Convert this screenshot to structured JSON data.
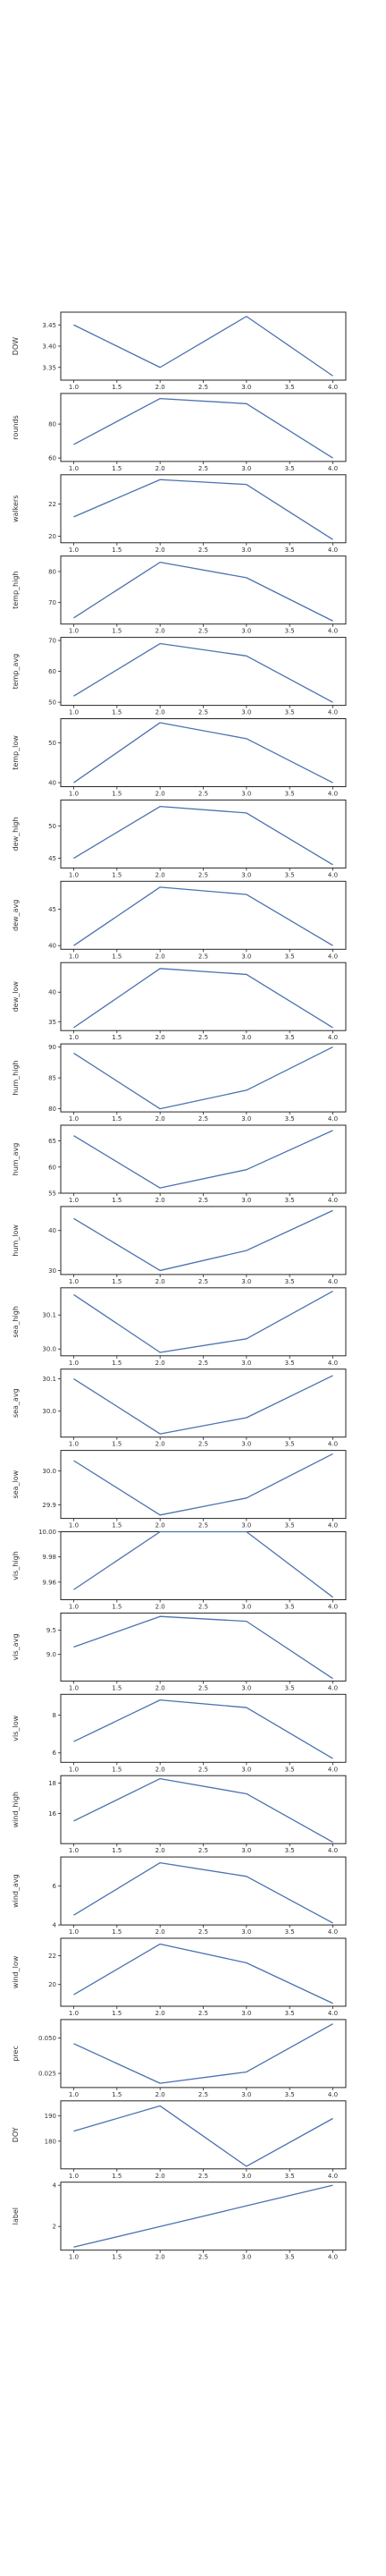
{
  "chart_data": [
    {
      "type": "line",
      "ylabel": "DOW",
      "x": [
        1,
        2,
        3,
        4
      ],
      "y": [
        3.45,
        3.35,
        3.47,
        3.33
      ],
      "ylim": [
        3.32,
        3.48
      ],
      "yticks": [
        "3.35",
        "3.40",
        "3.45"
      ]
    },
    {
      "type": "line",
      "ylabel": "rounds",
      "x": [
        1,
        2,
        3,
        4
      ],
      "y": [
        68,
        95,
        92,
        60
      ],
      "ylim": [
        58,
        98
      ],
      "yticks": [
        "60",
        "80"
      ]
    },
    {
      "type": "line",
      "ylabel": "walkers",
      "x": [
        1,
        2,
        3,
        4
      ],
      "y": [
        21.2,
        23.5,
        23.2,
        19.8
      ],
      "ylim": [
        19.6,
        23.8
      ],
      "yticks": [
        "20",
        "22"
      ]
    },
    {
      "type": "line",
      "ylabel": "temp_high",
      "x": [
        1,
        2,
        3,
        4
      ],
      "y": [
        65,
        83,
        78,
        64
      ],
      "ylim": [
        63,
        85
      ],
      "yticks": [
        "70",
        "80"
      ]
    },
    {
      "type": "line",
      "ylabel": "temp_avg",
      "x": [
        1,
        2,
        3,
        4
      ],
      "y": [
        52,
        69,
        65,
        50
      ],
      "ylim": [
        49,
        71
      ],
      "yticks": [
        "50",
        "60",
        "70"
      ]
    },
    {
      "type": "line",
      "ylabel": "temp_low",
      "x": [
        1,
        2,
        3,
        4
      ],
      "y": [
        40,
        55,
        51,
        40
      ],
      "ylim": [
        39,
        56
      ],
      "yticks": [
        "40",
        "50"
      ]
    },
    {
      "type": "line",
      "ylabel": "dew_high",
      "x": [
        1,
        2,
        3,
        4
      ],
      "y": [
        45,
        53,
        52,
        44
      ],
      "ylim": [
        43.5,
        54
      ],
      "yticks": [
        "45",
        "50"
      ]
    },
    {
      "type": "line",
      "ylabel": "dew_avg",
      "x": [
        1,
        2,
        3,
        4
      ],
      "y": [
        40,
        48,
        47,
        40
      ],
      "ylim": [
        39.5,
        48.8
      ],
      "yticks": [
        "40",
        "45"
      ]
    },
    {
      "type": "line",
      "ylabel": "dew_low",
      "x": [
        1,
        2,
        3,
        4
      ],
      "y": [
        34,
        44,
        43,
        34
      ],
      "ylim": [
        33.5,
        45
      ],
      "yticks": [
        "35",
        "40"
      ]
    },
    {
      "type": "line",
      "ylabel": "hum_high",
      "x": [
        1,
        2,
        3,
        4
      ],
      "y": [
        89,
        80,
        83,
        90
      ],
      "ylim": [
        79.5,
        90.5
      ],
      "yticks": [
        "80",
        "85",
        "90"
      ]
    },
    {
      "type": "line",
      "ylabel": "hum_avg",
      "x": [
        1,
        2,
        3,
        4
      ],
      "y": [
        66,
        56,
        59.5,
        67
      ],
      "ylim": [
        55,
        68
      ],
      "yticks": [
        "55",
        "60",
        "65"
      ]
    },
    {
      "type": "line",
      "ylabel": "hum_low",
      "x": [
        1,
        2,
        3,
        4
      ],
      "y": [
        43,
        30,
        35,
        45
      ],
      "ylim": [
        29,
        46
      ],
      "yticks": [
        "30",
        "40"
      ]
    },
    {
      "type": "line",
      "ylabel": "sea_high",
      "x": [
        1,
        2,
        3,
        4
      ],
      "y": [
        30.16,
        29.99,
        30.03,
        30.17
      ],
      "ylim": [
        29.98,
        30.18
      ],
      "yticks": [
        "30.0",
        "30.1"
      ]
    },
    {
      "type": "line",
      "ylabel": "sea_avg",
      "x": [
        1,
        2,
        3,
        4
      ],
      "y": [
        30.1,
        29.93,
        29.98,
        30.11
      ],
      "ylim": [
        29.92,
        30.13
      ],
      "yticks": [
        "30.0",
        "30.1"
      ]
    },
    {
      "type": "line",
      "ylabel": "sea_low",
      "x": [
        1,
        2,
        3,
        4
      ],
      "y": [
        30.03,
        29.87,
        29.92,
        30.05
      ],
      "ylim": [
        29.86,
        30.06
      ],
      "yticks": [
        "29.9",
        "30.0"
      ]
    },
    {
      "type": "line",
      "ylabel": "vis_high",
      "x": [
        1,
        2,
        3,
        4
      ],
      "y": [
        9.954,
        10.0,
        10.0,
        9.948
      ],
      "ylim": [
        9.946,
        10.0
      ],
      "yticks": [
        "9.96",
        "9.98",
        "10.00"
      ]
    },
    {
      "type": "line",
      "ylabel": "vis_avg",
      "x": [
        1,
        2,
        3,
        4
      ],
      "y": [
        9.15,
        9.78,
        9.68,
        8.5
      ],
      "ylim": [
        8.45,
        9.85
      ],
      "yticks": [
        "9.0",
        "9.5"
      ]
    },
    {
      "type": "line",
      "ylabel": "vis_low",
      "x": [
        1,
        2,
        3,
        4
      ],
      "y": [
        6.6,
        8.8,
        8.4,
        5.7
      ],
      "ylim": [
        5.5,
        9.1
      ],
      "yticks": [
        "6",
        "8"
      ]
    },
    {
      "type": "line",
      "ylabel": "wind_high",
      "x": [
        1,
        2,
        3,
        4
      ],
      "y": [
        15.5,
        18.3,
        17.3,
        14.1
      ],
      "ylim": [
        14.0,
        18.5
      ],
      "yticks": [
        "16",
        "18"
      ]
    },
    {
      "type": "line",
      "ylabel": "wind_avg",
      "x": [
        1,
        2,
        3,
        4
      ],
      "y": [
        4.5,
        7.2,
        6.5,
        4.1
      ],
      "ylim": [
        4.0,
        7.5
      ],
      "yticks": [
        "4",
        "6"
      ]
    },
    {
      "type": "line",
      "ylabel": "wind_low",
      "x": [
        1,
        2,
        3,
        4
      ],
      "y": [
        19.3,
        22.8,
        21.5,
        18.7
      ],
      "ylim": [
        18.5,
        23.2
      ],
      "yticks": [
        "20",
        "22"
      ]
    },
    {
      "type": "line",
      "ylabel": "prec",
      "x": [
        1,
        2,
        3,
        4
      ],
      "y": [
        0.046,
        0.018,
        0.026,
        0.06
      ],
      "ylim": [
        0.015,
        0.063
      ],
      "yticks": [
        "0.025",
        "0.050"
      ]
    },
    {
      "type": "line",
      "ylabel": "DOY",
      "x": [
        1,
        2,
        3,
        4
      ],
      "y": [
        184,
        194,
        170,
        189
      ],
      "ylim": [
        169,
        196
      ],
      "yticks": [
        "180",
        "190"
      ]
    },
    {
      "type": "line",
      "ylabel": "label",
      "x": [
        1,
        2,
        3,
        4
      ],
      "y": [
        1,
        2,
        3,
        4
      ],
      "ylim": [
        0.85,
        4.15
      ],
      "yticks": [
        "2",
        "4"
      ]
    }
  ],
  "x_ticks": [
    "1.0",
    "1.5",
    "2.0",
    "2.5",
    "3.0",
    "3.5",
    "4.0"
  ],
  "xlim": [
    0.85,
    4.15
  ],
  "line_color": "#4c72b0",
  "axes_color": "#262626",
  "tick_color": "#666666",
  "grid": false,
  "legend": "none"
}
